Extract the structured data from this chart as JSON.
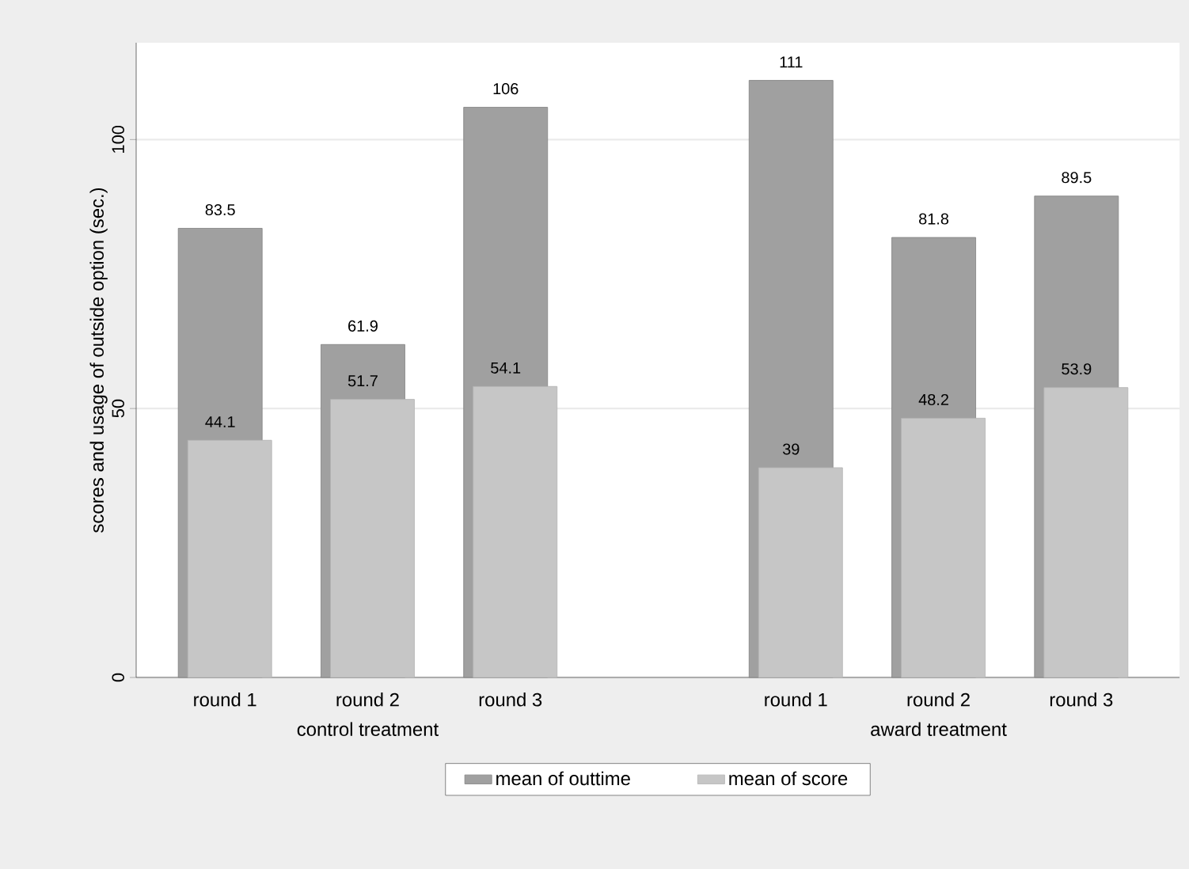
{
  "chart_data": {
    "type": "bar",
    "ylabel": "scores and usage of outside option (sec.)",
    "categories": [
      "round 1",
      "round 2",
      "round 3",
      null,
      "round 1",
      "round 2",
      "round 3"
    ],
    "series": [
      {
        "name": "mean of outtime",
        "color": "#a0a0a0",
        "values": [
          83.5,
          61.9,
          106,
          null,
          111,
          81.8,
          89.5
        ]
      },
      {
        "name": "mean of score",
        "color": "#c6c6c6",
        "values": [
          44.1,
          51.7,
          54.1,
          null,
          39,
          48.2,
          53.9
        ]
      }
    ],
    "annotations": [
      "control treatment",
      "award treatment"
    ],
    "ylim": [
      0,
      118
    ],
    "yticks": [
      0,
      50,
      100
    ],
    "grid": "y",
    "data_labels": true,
    "legend": "bottom"
  }
}
